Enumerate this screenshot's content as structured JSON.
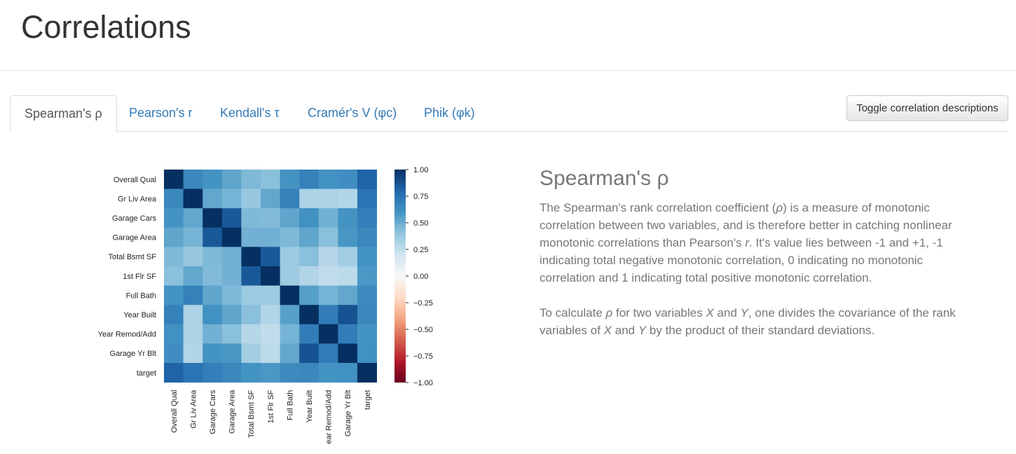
{
  "header": {
    "title": "Correlations"
  },
  "tabs": [
    {
      "label": "Spearman's ρ",
      "active": true
    },
    {
      "label": "Pearson's r",
      "active": false
    },
    {
      "label": "Kendall's τ",
      "active": false
    },
    {
      "label": "Cramér's V (φc)",
      "active": false
    },
    {
      "label": "Phik (φk)",
      "active": false
    }
  ],
  "toggle_button": {
    "label": "Toggle correlation descriptions"
  },
  "description": {
    "heading": "Spearman's ρ",
    "p1": {
      "a": "The Spearman's rank correlation coefficient (",
      "rho": "ρ",
      "b": ") is a measure of monotonic correlation between two variables, and is therefore better in catching nonlinear monotonic correlations than Pearson's ",
      "r": "r",
      "c": ". It's value lies between -1 and +1, -1 indicating total negative monotonic correlation, 0 indicating no monotonic correlation and 1 indicating total positive monotonic correlation."
    },
    "p2": {
      "a": "To calculate ",
      "rho": "ρ",
      "b": " for two variables ",
      "x": "X",
      "c": " and ",
      "y": "Y",
      "d": ", one divides the covariance of the rank variables of ",
      "x2": "X",
      "e": " and ",
      "y2": "Y",
      "f": " by the product of their standard deviations."
    }
  },
  "chart_data": {
    "type": "heatmap",
    "variables": [
      "Overall Qual",
      "Gr Liv Area",
      "Garage Cars",
      "Garage Area",
      "Total Bsmt SF",
      "1st Flr SF",
      "Full Bath",
      "Year Built",
      "Year Remod/Add",
      "Garage Yr Blt",
      "target"
    ],
    "x_tick_labels": [
      "Overall Qual",
      "Gr Liv Area",
      "Garage Cars",
      "Garage Area",
      "Total Bsmt SF",
      "1st Flr SF",
      "Full Bath",
      "Year Built",
      "ear Remod/Add",
      "Garage Yr Blt",
      "target"
    ],
    "matrix": [
      [
        1.0,
        0.65,
        0.6,
        0.53,
        0.45,
        0.42,
        0.6,
        0.68,
        0.61,
        0.62,
        0.81
      ],
      [
        0.65,
        1.0,
        0.52,
        0.47,
        0.38,
        0.52,
        0.68,
        0.32,
        0.32,
        0.3,
        0.74
      ],
      [
        0.6,
        0.52,
        1.0,
        0.85,
        0.45,
        0.44,
        0.53,
        0.61,
        0.48,
        0.6,
        0.69
      ],
      [
        0.53,
        0.47,
        0.85,
        1.0,
        0.48,
        0.48,
        0.45,
        0.53,
        0.42,
        0.59,
        0.65
      ],
      [
        0.45,
        0.38,
        0.45,
        0.48,
        1.0,
        0.85,
        0.37,
        0.42,
        0.29,
        0.35,
        0.6
      ],
      [
        0.42,
        0.52,
        0.44,
        0.48,
        0.85,
        1.0,
        0.36,
        0.3,
        0.25,
        0.27,
        0.58
      ],
      [
        0.6,
        0.68,
        0.53,
        0.45,
        0.37,
        0.36,
        1.0,
        0.55,
        0.47,
        0.52,
        0.64
      ],
      [
        0.68,
        0.32,
        0.61,
        0.53,
        0.42,
        0.3,
        0.55,
        1.0,
        0.7,
        0.87,
        0.65
      ],
      [
        0.61,
        0.32,
        0.48,
        0.42,
        0.29,
        0.25,
        0.47,
        0.7,
        1.0,
        0.7,
        0.6
      ],
      [
        0.62,
        0.3,
        0.6,
        0.59,
        0.35,
        0.27,
        0.52,
        0.87,
        0.7,
        1.0,
        0.61
      ],
      [
        0.81,
        0.74,
        0.69,
        0.65,
        0.6,
        0.58,
        0.64,
        0.65,
        0.6,
        0.61,
        1.0
      ]
    ],
    "colorbar": {
      "range": [
        -1.0,
        1.0
      ],
      "ticks": [
        1.0,
        0.75,
        0.5,
        0.25,
        0.0,
        -0.25,
        -0.5,
        -0.75,
        -1.0
      ],
      "tick_labels": [
        "1.00",
        "0.75",
        "0.50",
        "0.25",
        "0.00",
        "−0.25",
        "−0.50",
        "−0.75",
        "−1.00"
      ],
      "colormap": "RdBu",
      "colors": [
        "#67001f",
        "#b2182b",
        "#d6604d",
        "#f4a582",
        "#fddbc7",
        "#f7f7f7",
        "#d1e5f0",
        "#92c5de",
        "#4393c3",
        "#2166ac",
        "#053061"
      ]
    }
  }
}
